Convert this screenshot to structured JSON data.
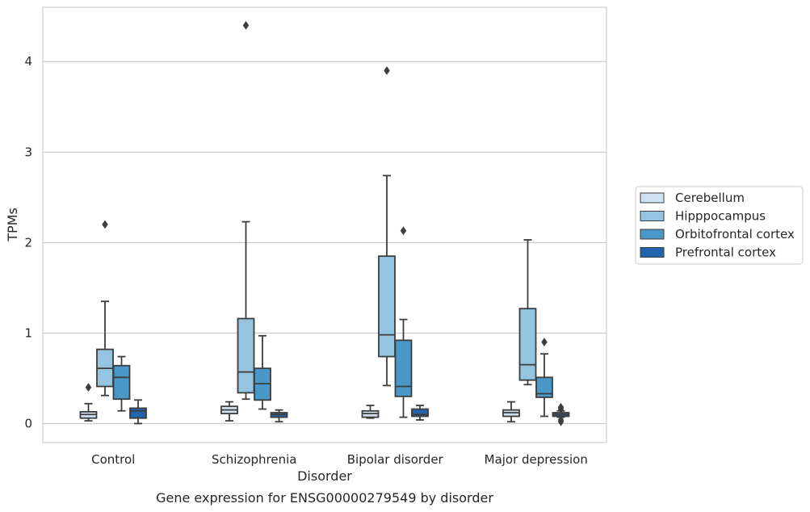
{
  "chart_data": {
    "type": "box",
    "title": "Gene expression for ENSG00000279549 by disorder",
    "xlabel": "Disorder",
    "ylabel": "TPMs",
    "ylim": [
      -0.21,
      4.6
    ],
    "yticks": [
      0,
      1,
      2,
      3,
      4
    ],
    "categories": [
      "Control",
      "Schizophrenia",
      "Bipolar disorder",
      "Major depression"
    ],
    "grid": "horizontal",
    "legend_position": "right",
    "series": [
      {
        "name": "Cerebellum",
        "color": "#d0e1f2",
        "boxes": [
          {
            "whisker_low": 0.03,
            "q1": 0.06,
            "median": 0.1,
            "q3": 0.13,
            "whisker_high": 0.22,
            "outliers": [
              0.4
            ]
          },
          {
            "whisker_low": 0.03,
            "q1": 0.11,
            "median": 0.15,
            "q3": 0.19,
            "whisker_high": 0.24,
            "outliers": []
          },
          {
            "whisker_low": 0.06,
            "q1": 0.07,
            "median": 0.11,
            "q3": 0.14,
            "whisker_high": 0.2,
            "outliers": []
          },
          {
            "whisker_low": 0.02,
            "q1": 0.08,
            "median": 0.12,
            "q3": 0.15,
            "whisker_high": 0.24,
            "outliers": []
          }
        ]
      },
      {
        "name": "Hipppocampus",
        "color": "#94c4df",
        "boxes": [
          {
            "whisker_low": 0.31,
            "q1": 0.41,
            "median": 0.61,
            "q3": 0.82,
            "whisker_high": 1.35,
            "outliers": [
              2.2
            ]
          },
          {
            "whisker_low": 0.27,
            "q1": 0.34,
            "median": 0.57,
            "q3": 1.16,
            "whisker_high": 2.23,
            "outliers": [
              4.4
            ]
          },
          {
            "whisker_low": 0.42,
            "q1": 0.74,
            "median": 0.98,
            "q3": 1.85,
            "whisker_high": 2.74,
            "outliers": [
              3.9
            ]
          },
          {
            "whisker_low": 0.43,
            "q1": 0.48,
            "median": 0.65,
            "q3": 1.27,
            "whisker_high": 2.03,
            "outliers": []
          }
        ]
      },
      {
        "name": "Orbitofrontal cortex",
        "color": "#4a98c9",
        "boxes": [
          {
            "whisker_low": 0.14,
            "q1": 0.27,
            "median": 0.51,
            "q3": 0.64,
            "whisker_high": 0.74,
            "outliers": []
          },
          {
            "whisker_low": 0.16,
            "q1": 0.26,
            "median": 0.44,
            "q3": 0.61,
            "whisker_high": 0.97,
            "outliers": []
          },
          {
            "whisker_low": 0.07,
            "q1": 0.3,
            "median": 0.41,
            "q3": 0.92,
            "whisker_high": 1.15,
            "outliers": [
              2.13
            ]
          },
          {
            "whisker_low": 0.08,
            "q1": 0.29,
            "median": 0.33,
            "q3": 0.51,
            "whisker_high": 0.77,
            "outliers": [
              0.9
            ]
          }
        ]
      },
      {
        "name": "Prefrontal cortex",
        "color": "#2164ab",
        "boxes": [
          {
            "whisker_low": 0.0,
            "q1": 0.06,
            "median": 0.14,
            "q3": 0.17,
            "whisker_high": 0.26,
            "outliers": []
          },
          {
            "whisker_low": 0.02,
            "q1": 0.07,
            "median": 0.1,
            "q3": 0.12,
            "whisker_high": 0.15,
            "outliers": []
          },
          {
            "whisker_low": 0.04,
            "q1": 0.08,
            "median": 0.1,
            "q3": 0.16,
            "whisker_high": 0.2,
            "outliers": []
          },
          {
            "whisker_low": 0.07,
            "q1": 0.08,
            "median": 0.1,
            "q3": 0.12,
            "whisker_high": 0.14,
            "outliers": [
              0.02,
              0.04,
              0.16,
              0.18
            ]
          }
        ]
      }
    ]
  }
}
